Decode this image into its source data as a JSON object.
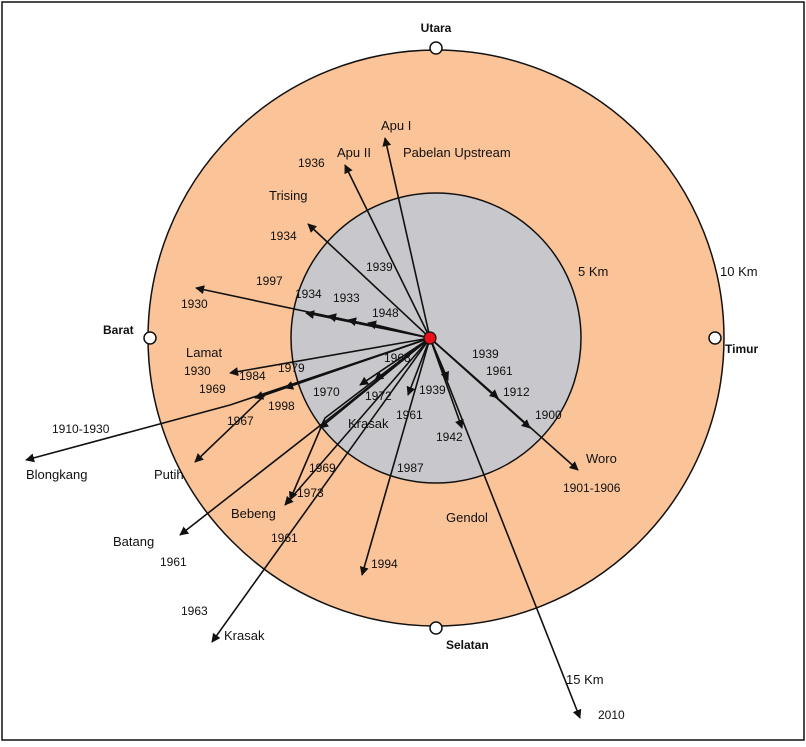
{
  "colors": {
    "outer_zone": "#fbc398",
    "inner_zone": "#c8c8cc",
    "summit": "#e8101a",
    "line": "#111111",
    "border": "#111111"
  },
  "compass": {
    "north": "Utara",
    "south": "Selatan",
    "east": "Timur",
    "west": "Barat"
  },
  "radii": {
    "inner": "5 Km",
    "outer": "10 Km",
    "extra": "15 Km"
  },
  "valleys": {
    "apu_1": "Apu I",
    "apu_2": "Apu II",
    "pabelan": "Pabelan Upstream",
    "trising": "Trising",
    "lamat": "Lamat",
    "blongkang": "Blongkang",
    "putih": "Putih",
    "batang": "Batang",
    "bebeng": "Bebeng",
    "krasak_inner": "Krasak",
    "krasak_outer": "Krasak",
    "gendol": "Gendol",
    "woro": "Woro"
  },
  "years": {
    "y1936": "1936",
    "y1934a": "1934",
    "y1939a": "1939",
    "y1997": "1997",
    "y1930a": "1930",
    "y1934b": "1934",
    "y1933": "1933",
    "y1948": "1948",
    "y1930b": "1930",
    "y1984": "1984",
    "y1979": "1979",
    "y1968": "1968",
    "y1969a": "1969",
    "y1998": "1998",
    "y1967": "1967",
    "y1910_1930": "1910-1930",
    "y1970": "1970",
    "y1972": "1972",
    "y1939b": "1939",
    "y1961a": "1961",
    "y1969b": "1969",
    "y1973": "1973",
    "y1961b": "1961",
    "y1961c": "1961",
    "y1963": "1963",
    "y1987": "1987",
    "y1994": "1994",
    "y1942": "1942",
    "y1939c": "1939",
    "y1961d": "1961",
    "y1912": "1912",
    "y1900": "1900",
    "y1901_1906": "1901-1906",
    "y2010": "2010"
  }
}
